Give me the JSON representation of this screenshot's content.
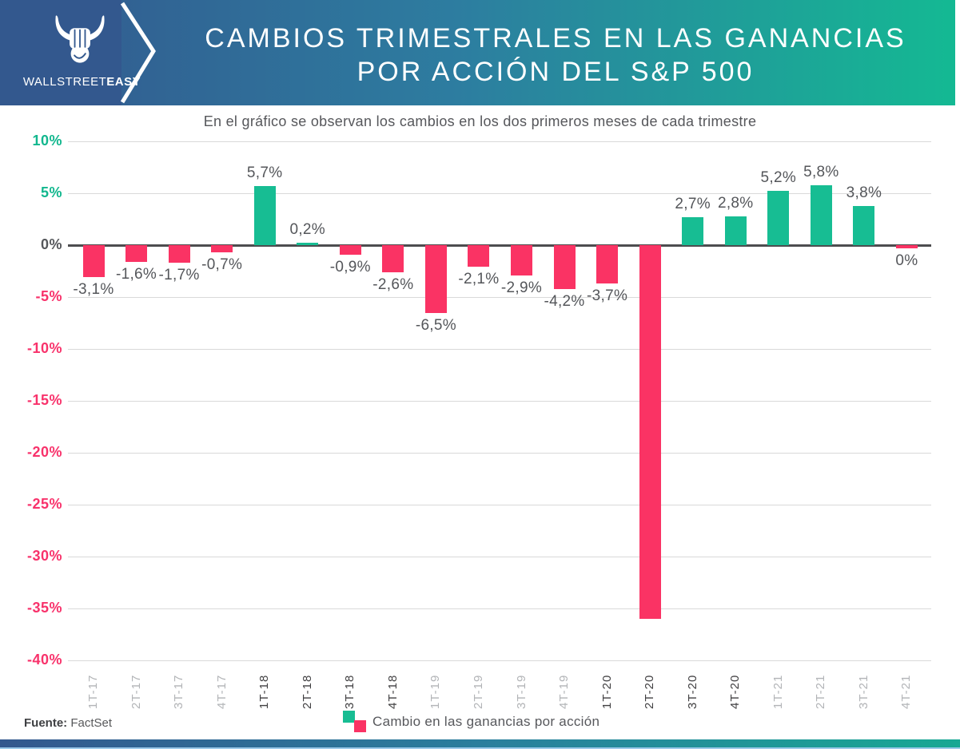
{
  "colors": {
    "header_blue": "#33588e",
    "header_teal": "#14b993",
    "positive": "#17bd93",
    "negative": "#fa3364"
  },
  "header": {
    "brand_regular": "WALLSTREET",
    "brand_bold": "EASY",
    "title_line1": "CAMBIOS TRIMESTRALES EN LAS GANANCIAS",
    "title_line2": "POR ACCIÓN DEL S&P 500"
  },
  "chart_data": {
    "type": "bar",
    "title": "Cambios trimestrales en las ganancias por acción del S&P 500",
    "subtitle": "En el gráfico se observan los cambios en los dos primeros meses de cada trimestre",
    "legend_label": "Cambio en las ganancias por acción",
    "legend_position": "bottom",
    "grid": true,
    "xlabel": "",
    "ylabel": "",
    "ylim": [
      -40,
      10
    ],
    "yticks": [
      10,
      5,
      0,
      -5,
      -10,
      -15,
      -20,
      -25,
      -30,
      -35,
      -40
    ],
    "ytick_labels": [
      "10%",
      "5%",
      "0%",
      "-5%",
      "-10%",
      "-15%",
      "-20%",
      "-25%",
      "-30%",
      "-35%",
      "-40%"
    ],
    "categories": [
      "1T-17",
      "2T-17",
      "3T-17",
      "4T-17",
      "1T-18",
      "2T-18",
      "3T-18",
      "4T-18",
      "1T-19",
      "2T-19",
      "3T-19",
      "4T-19",
      "1T-20",
      "2T-20",
      "3T-20",
      "4T-20",
      "1T-21",
      "2T-21",
      "3T-21",
      "4T-21"
    ],
    "values": [
      -3.1,
      -1.6,
      -1.7,
      -0.7,
      5.7,
      0.2,
      -0.9,
      -2.6,
      -6.5,
      -2.1,
      -2.9,
      -4.2,
      -3.7,
      -36,
      2.7,
      2.8,
      5.2,
      5.8,
      3.8,
      0
    ],
    "value_labels": [
      "-3,1%",
      "-1,6%",
      "-1,7%",
      "-0,7%",
      "5,7%",
      "0,2%",
      "-0,9%",
      "-2,6%",
      "-6,5%",
      "-2,1%",
      "-2,9%",
      "-4,2%",
      "-3,7%",
      null,
      "2,7%",
      "2,8%",
      "5,2%",
      "5,8%",
      "3,8%",
      "0%"
    ]
  },
  "footer": {
    "source_label": "Fuente:",
    "source_value": "FactSet"
  }
}
